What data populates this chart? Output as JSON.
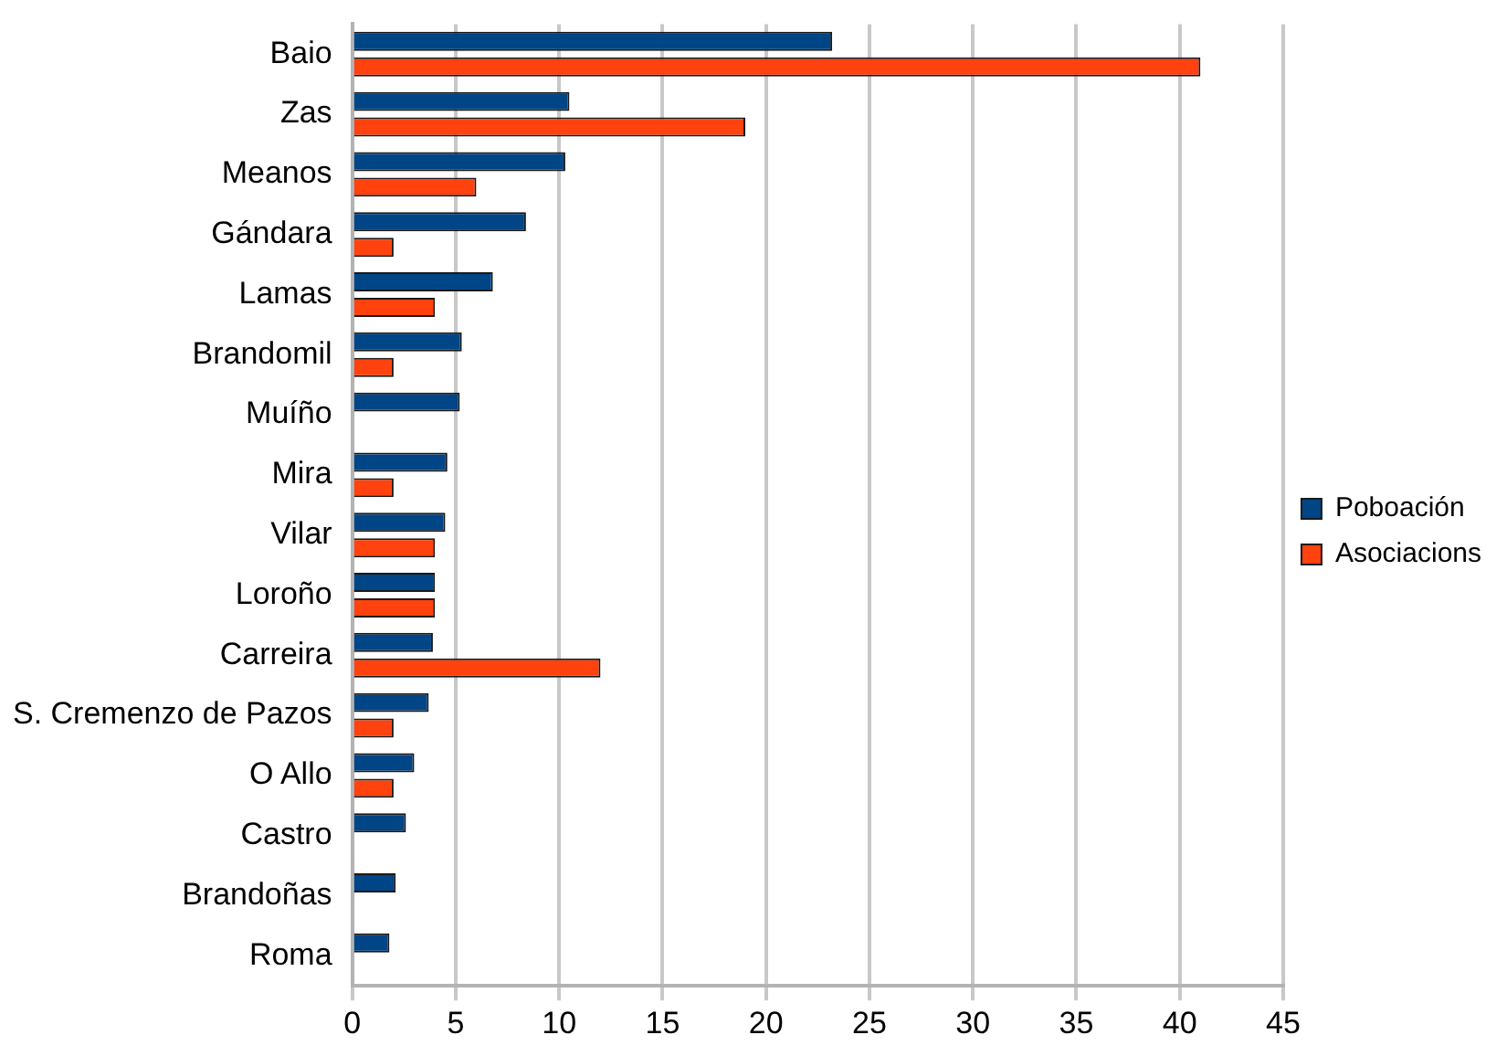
{
  "chart_data": {
    "type": "bar",
    "orientation": "horizontal",
    "categories": [
      "Baio",
      "Zas",
      "Meanos",
      "Gándara",
      "Lamas",
      "Brandomil",
      "Muíño",
      "Mira",
      "Vilar",
      "Loroño",
      "Carreira",
      "S. Cremenzo de Pazos",
      "O Allo",
      "Castro",
      "Brandoñas",
      "Roma"
    ],
    "series": [
      {
        "name": "Poboación",
        "color": "#004586",
        "values": [
          23.2,
          10.5,
          10.3,
          8.4,
          6.8,
          5.3,
          5.2,
          4.6,
          4.5,
          4.0,
          3.9,
          3.7,
          3.0,
          2.6,
          2.1,
          1.8
        ]
      },
      {
        "name": "Asociacions",
        "color": "#ff420e",
        "values": [
          41,
          19,
          6,
          2,
          4,
          2,
          null,
          2,
          4,
          4,
          12,
          2,
          2,
          null,
          null,
          null
        ]
      }
    ],
    "xlim": [
      0,
      45
    ],
    "xticks": [
      0,
      5,
      10,
      15,
      20,
      25,
      30,
      35,
      40,
      45
    ],
    "grid": "x",
    "legend": "right"
  }
}
